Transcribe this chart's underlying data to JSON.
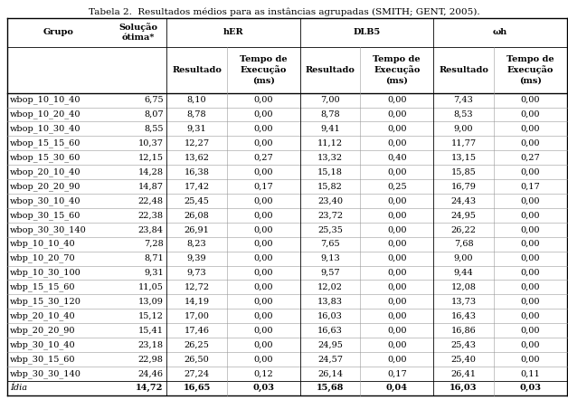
{
  "title": "Tabela 2.  Resultados médios para as instâncias agrupadas (SMITH; GENT, 2005).",
  "rows": [
    [
      "wbop_10_10_40",
      "6,75",
      "8,10",
      "0,00",
      "7,00",
      "0,00",
      "7,43",
      "0,00"
    ],
    [
      "wbop_10_20_40",
      "8,07",
      "8,78",
      "0,00",
      "8,78",
      "0,00",
      "8,53",
      "0,00"
    ],
    [
      "wbop_10_30_40",
      "8,55",
      "9,31",
      "0,00",
      "9,41",
      "0,00",
      "9,00",
      "0,00"
    ],
    [
      "wbop_15_15_60",
      "10,37",
      "12,27",
      "0,00",
      "11,12",
      "0,00",
      "11,77",
      "0,00"
    ],
    [
      "wbop_15_30_60",
      "12,15",
      "13,62",
      "0,27",
      "13,32",
      "0,40",
      "13,15",
      "0,27"
    ],
    [
      "wbop_20_10_40",
      "14,28",
      "16,38",
      "0,00",
      "15,18",
      "0,00",
      "15,85",
      "0,00"
    ],
    [
      "wbop_20_20_90",
      "14,87",
      "17,42",
      "0,17",
      "15,82",
      "0,25",
      "16,79",
      "0,17"
    ],
    [
      "wbop_30_10_40",
      "22,48",
      "25,45",
      "0,00",
      "23,40",
      "0,00",
      "24,43",
      "0,00"
    ],
    [
      "wbop_30_15_60",
      "22,38",
      "26,08",
      "0,00",
      "23,72",
      "0,00",
      "24,95",
      "0,00"
    ],
    [
      "wbop_30_30_140",
      "23,84",
      "26,91",
      "0,00",
      "25,35",
      "0,00",
      "26,22",
      "0,00"
    ],
    [
      "wbp_10_10_40",
      "7,28",
      "8,23",
      "0,00",
      "7,65",
      "0,00",
      "7,68",
      "0,00"
    ],
    [
      "wbp_10_20_70",
      "8,71",
      "9,39",
      "0,00",
      "9,13",
      "0,00",
      "9,00",
      "0,00"
    ],
    [
      "wbp_10_30_100",
      "9,31",
      "9,73",
      "0,00",
      "9,57",
      "0,00",
      "9,44",
      "0,00"
    ],
    [
      "wbp_15_15_60",
      "11,05",
      "12,72",
      "0,00",
      "12,02",
      "0,00",
      "12,08",
      "0,00"
    ],
    [
      "wbp_15_30_120",
      "13,09",
      "14,19",
      "0,00",
      "13,83",
      "0,00",
      "13,73",
      "0,00"
    ],
    [
      "wbp_20_10_40",
      "15,12",
      "17,00",
      "0,00",
      "16,03",
      "0,00",
      "16,43",
      "0,00"
    ],
    [
      "wbp_20_20_90",
      "15,41",
      "17,46",
      "0,00",
      "16,63",
      "0,00",
      "16,86",
      "0,00"
    ],
    [
      "wbp_30_10_40",
      "23,18",
      "26,25",
      "0,00",
      "24,95",
      "0,00",
      "25,43",
      "0,00"
    ],
    [
      "wbp_30_15_60",
      "22,98",
      "26,50",
      "0,00",
      "24,57",
      "0,00",
      "25,40",
      "0,00"
    ],
    [
      "wbp_30_30_140",
      "24,46",
      "27,24",
      "0,12",
      "26,14",
      "0,17",
      "26,41",
      "0,11"
    ]
  ],
  "footer_row": [
    "Ídia",
    "14,72",
    "16,65",
    "0,03",
    "15,68",
    "0,04",
    "16,03",
    "0,03"
  ],
  "bg_color": "#ffffff",
  "text_color": "#000000",
  "font_size": 7.0,
  "title_font_size": 7.5
}
